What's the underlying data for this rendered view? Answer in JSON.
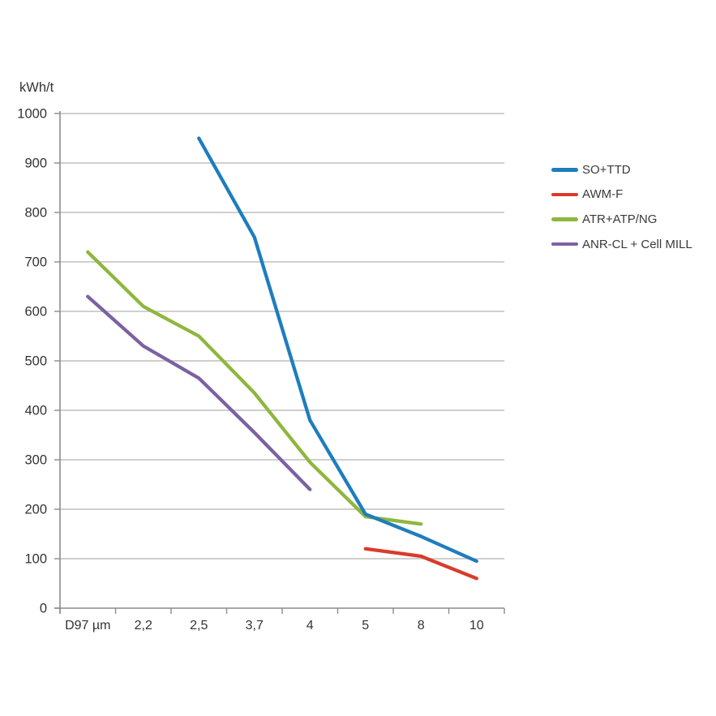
{
  "chart_data": {
    "type": "line",
    "title": "",
    "ylabel": "kWh/t",
    "xlabel": "",
    "categories": [
      "D97 µm",
      "2,2",
      "2,5",
      "3,7",
      "4",
      "5",
      "8",
      "10"
    ],
    "ylim": [
      0,
      1000
    ],
    "y_ticks": [
      0,
      100,
      200,
      300,
      400,
      500,
      600,
      700,
      800,
      900,
      1000
    ],
    "grid": "horizontal",
    "legend_position": "right",
    "series": [
      {
        "name": "SO+TTD",
        "color": "#1E7DBE",
        "values": [
          null,
          null,
          950,
          750,
          380,
          190,
          145,
          95
        ]
      },
      {
        "name": "AWM-F",
        "color": "#D93B2B",
        "values": [
          null,
          null,
          null,
          null,
          null,
          120,
          105,
          60
        ]
      },
      {
        "name": "ATR+ATP/NG",
        "color": "#8EB73E",
        "values": [
          720,
          610,
          550,
          435,
          295,
          185,
          170,
          null
        ]
      },
      {
        "name": "ANR-CL + Cell MILL",
        "color": "#7C61A2",
        "values": [
          630,
          530,
          465,
          355,
          240,
          null,
          null,
          null
        ]
      }
    ]
  },
  "style_colors": {
    "gridline": "#BFBFBF",
    "axis": "#8C8C8C",
    "tick_label": "#333333"
  }
}
